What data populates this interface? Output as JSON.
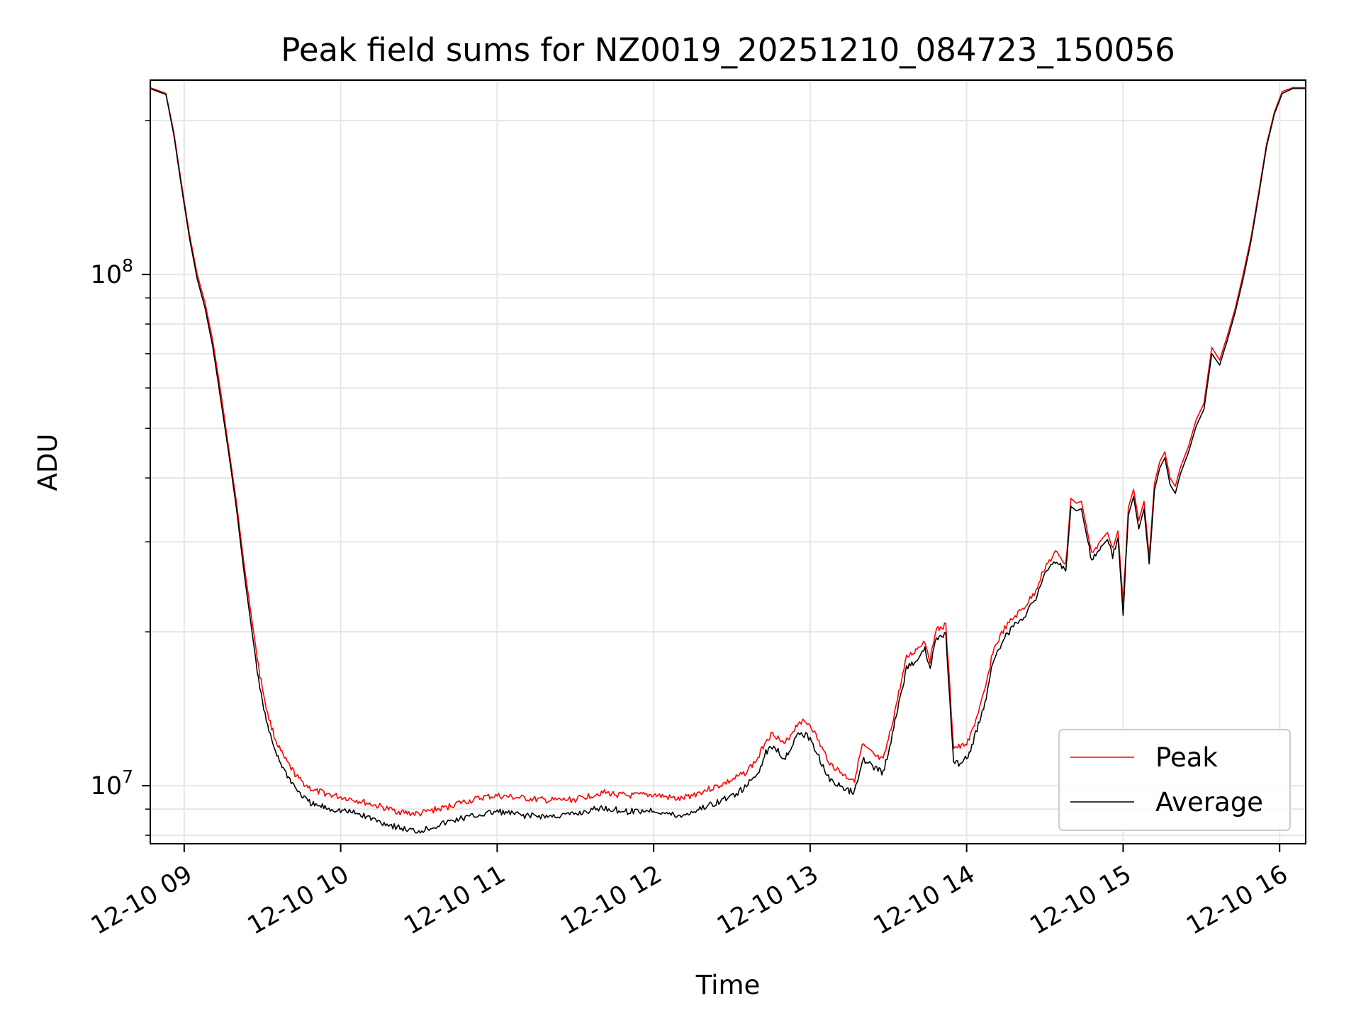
{
  "chart_data": {
    "type": "line",
    "title": "Peak field sums for NZ0019_20251210_084723_150056",
    "xlabel": "Time",
    "ylabel": "ADU",
    "y_scale": "log",
    "ylim": [
      7700000,
      240000000
    ],
    "xlim": [
      "2025-12-10 08:47",
      "2025-12-10 16:10"
    ],
    "x_ticks": [
      {
        "t": "2025-12-10 09:00",
        "label": "12-10 09"
      },
      {
        "t": "2025-12-10 10:00",
        "label": "12-10 10"
      },
      {
        "t": "2025-12-10 11:00",
        "label": "12-10 11"
      },
      {
        "t": "2025-12-10 12:00",
        "label": "12-10 12"
      },
      {
        "t": "2025-12-10 13:00",
        "label": "12-10 13"
      },
      {
        "t": "2025-12-10 14:00",
        "label": "12-10 14"
      },
      {
        "t": "2025-12-10 15:00",
        "label": "12-10 15"
      },
      {
        "t": "2025-12-10 16:00",
        "label": "12-10 16"
      }
    ],
    "y_major_ticks": [
      {
        "v": 10000000,
        "base": "10",
        "exp": "7"
      },
      {
        "v": 100000000,
        "base": "10",
        "exp": "8"
      }
    ],
    "grid": true,
    "legend_position": "lower-right",
    "series": [
      {
        "name": "Peak",
        "color": "#ff0000",
        "x": [
          "2025-12-10 08:47",
          "2025-12-10 08:53",
          "2025-12-10 08:56",
          "2025-12-10 08:59",
          "2025-12-10 09:02",
          "2025-12-10 09:05",
          "2025-12-10 09:08",
          "2025-12-10 09:11",
          "2025-12-10 09:14",
          "2025-12-10 09:17",
          "2025-12-10 09:20",
          "2025-12-10 09:23",
          "2025-12-10 09:26",
          "2025-12-10 09:29",
          "2025-12-10 09:32",
          "2025-12-10 09:35",
          "2025-12-10 09:38",
          "2025-12-10 09:41",
          "2025-12-10 09:44",
          "2025-12-10 09:47",
          "2025-12-10 09:50",
          "2025-12-10 09:53",
          "2025-12-10 09:56",
          "2025-12-10 10:00",
          "2025-12-10 10:05",
          "2025-12-10 10:10",
          "2025-12-10 10:15",
          "2025-12-10 10:20",
          "2025-12-10 10:25",
          "2025-12-10 10:30",
          "2025-12-10 10:35",
          "2025-12-10 10:40",
          "2025-12-10 10:45",
          "2025-12-10 10:50",
          "2025-12-10 10:55",
          "2025-12-10 11:00",
          "2025-12-10 11:10",
          "2025-12-10 11:20",
          "2025-12-10 11:30",
          "2025-12-10 11:40",
          "2025-12-10 11:50",
          "2025-12-10 12:00",
          "2025-12-10 12:10",
          "2025-12-10 12:15",
          "2025-12-10 12:20",
          "2025-12-10 12:25",
          "2025-12-10 12:30",
          "2025-12-10 12:35",
          "2025-12-10 12:40",
          "2025-12-10 12:43",
          "2025-12-10 12:46",
          "2025-12-10 12:50",
          "2025-12-10 12:53",
          "2025-12-10 12:56",
          "2025-12-10 13:00",
          "2025-12-10 13:05",
          "2025-12-10 13:08",
          "2025-12-10 13:11",
          "2025-12-10 13:14",
          "2025-12-10 13:17",
          "2025-12-10 13:20",
          "2025-12-10 13:25",
          "2025-12-10 13:28",
          "2025-12-10 13:31",
          "2025-12-10 13:34",
          "2025-12-10 13:37",
          "2025-12-10 13:40",
          "2025-12-10 13:42",
          "2025-12-10 13:44",
          "2025-12-10 13:46",
          "2025-12-10 13:48",
          "2025-12-10 13:50",
          "2025-12-10 13:52",
          "2025-12-10 13:55",
          "2025-12-10 13:58",
          "2025-12-10 14:01",
          "2025-12-10 14:04",
          "2025-12-10 14:07",
          "2025-12-10 14:10",
          "2025-12-10 14:14",
          "2025-12-10 14:18",
          "2025-12-10 14:22",
          "2025-12-10 14:26",
          "2025-12-10 14:30",
          "2025-12-10 14:34",
          "2025-12-10 14:36",
          "2025-12-10 14:38",
          "2025-12-10 14:40",
          "2025-12-10 14:42",
          "2025-12-10 14:44",
          "2025-12-10 14:46",
          "2025-12-10 14:48",
          "2025-12-10 14:51",
          "2025-12-10 14:54",
          "2025-12-10 14:56",
          "2025-12-10 14:58",
          "2025-12-10 15:00",
          "2025-12-10 15:02",
          "2025-12-10 15:04",
          "2025-12-10 15:06",
          "2025-12-10 15:08",
          "2025-12-10 15:10",
          "2025-12-10 15:12",
          "2025-12-10 15:14",
          "2025-12-10 15:16",
          "2025-12-10 15:18",
          "2025-12-10 15:20",
          "2025-12-10 15:22",
          "2025-12-10 15:25",
          "2025-12-10 15:28",
          "2025-12-10 15:31",
          "2025-12-10 15:34",
          "2025-12-10 15:37",
          "2025-12-10 15:40",
          "2025-12-10 15:43",
          "2025-12-10 15:46",
          "2025-12-10 15:49",
          "2025-12-10 15:52",
          "2025-12-10 15:55",
          "2025-12-10 15:58",
          "2025-12-10 16:01",
          "2025-12-10 16:05",
          "2025-12-10 16:10"
        ],
        "y": [
          232000000,
          226000000,
          190000000,
          150000000,
          120000000,
          100000000,
          88000000,
          74000000,
          59000000,
          46000000,
          36000000,
          27000000,
          21000000,
          16500000,
          13800000,
          12300000,
          11400000,
          10800000,
          10300000,
          10000000,
          9750000,
          9700000,
          9600000,
          9500000,
          9400000,
          9250000,
          9100000,
          8950000,
          8850000,
          8800000,
          8950000,
          9050000,
          9250000,
          9350000,
          9500000,
          9550000,
          9450000,
          9350000,
          9400000,
          9700000,
          9550000,
          9600000,
          9400000,
          9600000,
          9800000,
          10000000,
          10250000,
          10600000,
          11300000,
          12300000,
          12700000,
          12000000,
          12700000,
          13400000,
          13200000,
          11700000,
          11000000,
          10700000,
          10400000,
          10300000,
          12000000,
          11400000,
          11200000,
          12900000,
          15200000,
          17800000,
          18300000,
          18800000,
          19200000,
          17600000,
          20100000,
          20300000,
          20600000,
          11900000,
          11900000,
          12300000,
          13700000,
          15300000,
          18300000,
          20100000,
          21300000,
          22300000,
          23800000,
          26800000,
          28500000,
          28100000,
          27000000,
          36500000,
          35700000,
          36000000,
          32000000,
          28300000,
          30000000,
          31300000,
          29000000,
          31500000,
          22800000,
          35000000,
          38000000,
          33000000,
          36000000,
          28000000,
          39000000,
          43000000,
          45000000,
          40000000,
          38500000,
          42000000,
          46000000,
          52000000,
          56000000,
          72000000,
          68000000,
          76000000,
          86000000,
          100000000,
          118000000,
          145000000,
          180000000,
          208000000,
          228000000,
          232000000,
          232000000
        ]
      },
      {
        "name": "Average",
        "color": "#000000",
        "x": [
          "2025-12-10 08:47",
          "2025-12-10 08:53",
          "2025-12-10 08:56",
          "2025-12-10 08:59",
          "2025-12-10 09:02",
          "2025-12-10 09:05",
          "2025-12-10 09:08",
          "2025-12-10 09:11",
          "2025-12-10 09:14",
          "2025-12-10 09:17",
          "2025-12-10 09:20",
          "2025-12-10 09:23",
          "2025-12-10 09:26",
          "2025-12-10 09:29",
          "2025-12-10 09:32",
          "2025-12-10 09:35",
          "2025-12-10 09:38",
          "2025-12-10 09:41",
          "2025-12-10 09:44",
          "2025-12-10 09:47",
          "2025-12-10 09:50",
          "2025-12-10 09:53",
          "2025-12-10 09:56",
          "2025-12-10 10:00",
          "2025-12-10 10:05",
          "2025-12-10 10:10",
          "2025-12-10 10:15",
          "2025-12-10 10:20",
          "2025-12-10 10:25",
          "2025-12-10 10:30",
          "2025-12-10 10:35",
          "2025-12-10 10:40",
          "2025-12-10 10:45",
          "2025-12-10 10:50",
          "2025-12-10 10:55",
          "2025-12-10 11:00",
          "2025-12-10 11:10",
          "2025-12-10 11:20",
          "2025-12-10 11:30",
          "2025-12-10 11:40",
          "2025-12-10 11:50",
          "2025-12-10 12:00",
          "2025-12-10 12:10",
          "2025-12-10 12:15",
          "2025-12-10 12:20",
          "2025-12-10 12:25",
          "2025-12-10 12:30",
          "2025-12-10 12:35",
          "2025-12-10 12:40",
          "2025-12-10 12:43",
          "2025-12-10 12:46",
          "2025-12-10 12:50",
          "2025-12-10 12:53",
          "2025-12-10 12:56",
          "2025-12-10 13:00",
          "2025-12-10 13:05",
          "2025-12-10 13:08",
          "2025-12-10 13:11",
          "2025-12-10 13:14",
          "2025-12-10 13:17",
          "2025-12-10 13:20",
          "2025-12-10 13:25",
          "2025-12-10 13:28",
          "2025-12-10 13:31",
          "2025-12-10 13:34",
          "2025-12-10 13:37",
          "2025-12-10 13:40",
          "2025-12-10 13:42",
          "2025-12-10 13:44",
          "2025-12-10 13:46",
          "2025-12-10 13:48",
          "2025-12-10 13:50",
          "2025-12-10 13:52",
          "2025-12-10 13:55",
          "2025-12-10 13:58",
          "2025-12-10 14:01",
          "2025-12-10 14:04",
          "2025-12-10 14:07",
          "2025-12-10 14:10",
          "2025-12-10 14:14",
          "2025-12-10 14:18",
          "2025-12-10 14:22",
          "2025-12-10 14:26",
          "2025-12-10 14:30",
          "2025-12-10 14:34",
          "2025-12-10 14:36",
          "2025-12-10 14:38",
          "2025-12-10 14:40",
          "2025-12-10 14:42",
          "2025-12-10 14:44",
          "2025-12-10 14:46",
          "2025-12-10 14:48",
          "2025-12-10 14:51",
          "2025-12-10 14:54",
          "2025-12-10 14:56",
          "2025-12-10 14:58",
          "2025-12-10 15:00",
          "2025-12-10 15:02",
          "2025-12-10 15:04",
          "2025-12-10 15:06",
          "2025-12-10 15:08",
          "2025-12-10 15:10",
          "2025-12-10 15:12",
          "2025-12-10 15:14",
          "2025-12-10 15:16",
          "2025-12-10 15:18",
          "2025-12-10 15:20",
          "2025-12-10 15:22",
          "2025-12-10 15:25",
          "2025-12-10 15:28",
          "2025-12-10 15:31",
          "2025-12-10 15:34",
          "2025-12-10 15:37",
          "2025-12-10 15:40",
          "2025-12-10 15:43",
          "2025-12-10 15:46",
          "2025-12-10 15:49",
          "2025-12-10 15:52",
          "2025-12-10 15:55",
          "2025-12-10 15:58",
          "2025-12-10 16:01",
          "2025-12-10 16:05",
          "2025-12-10 16:10"
        ],
        "y": [
          231000000,
          225000000,
          188000000,
          148000000,
          118000000,
          98000000,
          86000000,
          72000000,
          57000000,
          45000000,
          35000000,
          26000000,
          20000000,
          15500000,
          13000000,
          11700000,
          10800000,
          10200000,
          9700000,
          9350000,
          9150000,
          9100000,
          9000000,
          8950000,
          8850000,
          8700000,
          8500000,
          8350000,
          8200000,
          8150000,
          8300000,
          8450000,
          8600000,
          8700000,
          8800000,
          8900000,
          8750000,
          8700000,
          8800000,
          9050000,
          8900000,
          8950000,
          8700000,
          8900000,
          9100000,
          9300000,
          9550000,
          9900000,
          10600000,
          11600000,
          12000000,
          11300000,
          12000000,
          12700000,
          12400000,
          10900000,
          10200000,
          10000000,
          9800000,
          9700000,
          11300000,
          10800000,
          10600000,
          12200000,
          14500000,
          17000000,
          17500000,
          18000000,
          18500000,
          16800000,
          19300000,
          19500000,
          19800000,
          11000000,
          11100000,
          11500000,
          12900000,
          14500000,
          17500000,
          19300000,
          20500000,
          21500000,
          23000000,
          25800000,
          27500000,
          27200000,
          26200000,
          35200000,
          34500000,
          34800000,
          30900000,
          27500000,
          29100000,
          30300000,
          28100000,
          30500000,
          21800000,
          33800000,
          36800000,
          31800000,
          34800000,
          27000000,
          37800000,
          41800000,
          43800000,
          38800000,
          37300000,
          40800000,
          44800000,
          50500000,
          54500000,
          70000000,
          66500000,
          74500000,
          84500000,
          98000000,
          116000000,
          143000000,
          178000000,
          206000000,
          226000000,
          231000000,
          231000000
        ]
      }
    ]
  }
}
